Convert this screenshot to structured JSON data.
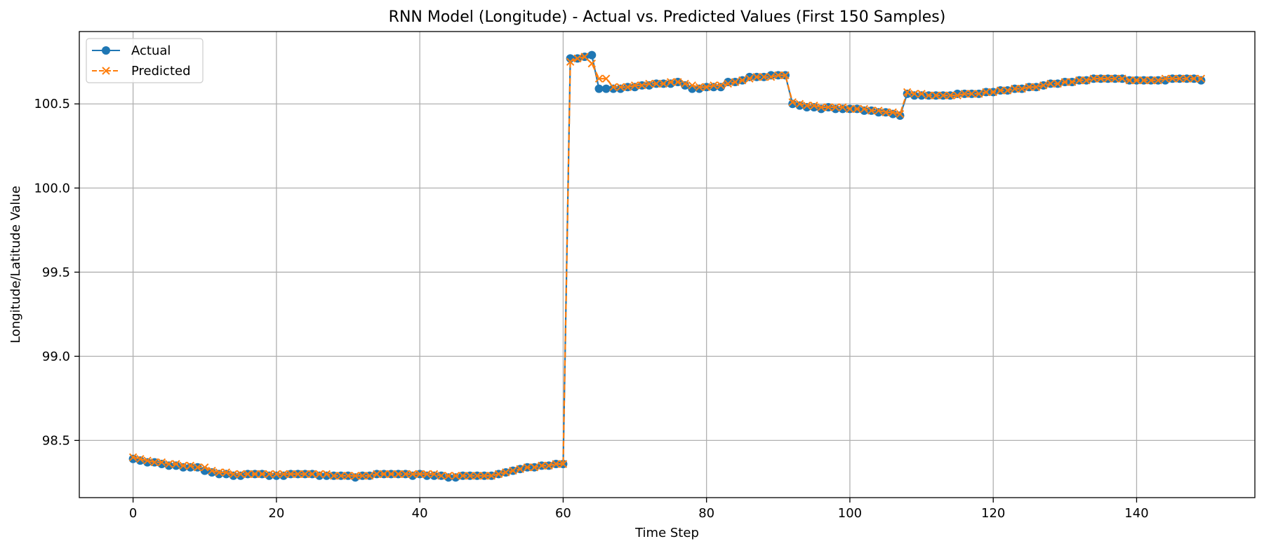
{
  "colors": {
    "actual": "#1f77b4",
    "predicted": "#ff7f0e",
    "grid": "#b0b0b0"
  },
  "chart_data": {
    "type": "line",
    "title": "RNN Model (Longitude) - Actual vs. Predicted Values (First 150 Samples)",
    "xlabel": "Time Step",
    "ylabel": "Longitude/Latitude Value",
    "xlim": [
      -7.5,
      156.5
    ],
    "ylim": [
      98.16,
      100.93
    ],
    "xticks": [
      0,
      20,
      40,
      60,
      80,
      100,
      120,
      140
    ],
    "xtick_labels": [
      "0",
      "20",
      "40",
      "60",
      "80",
      "100",
      "120",
      "140"
    ],
    "yticks": [
      98.5,
      99.0,
      99.5,
      100.0,
      100.5
    ],
    "ytick_labels": [
      "98.5",
      "99.0",
      "99.5",
      "100.0",
      "100.5"
    ],
    "grid": true,
    "legend_position": "upper-left",
    "x": [
      0,
      1,
      2,
      3,
      4,
      5,
      6,
      7,
      8,
      9,
      10,
      11,
      12,
      13,
      14,
      15,
      16,
      17,
      18,
      19,
      20,
      21,
      22,
      23,
      24,
      25,
      26,
      27,
      28,
      29,
      30,
      31,
      32,
      33,
      34,
      35,
      36,
      37,
      38,
      39,
      40,
      41,
      42,
      43,
      44,
      45,
      46,
      47,
      48,
      49,
      50,
      51,
      52,
      53,
      54,
      55,
      56,
      57,
      58,
      59,
      60,
      61,
      62,
      63,
      64,
      65,
      66,
      67,
      68,
      69,
      70,
      71,
      72,
      73,
      74,
      75,
      76,
      77,
      78,
      79,
      80,
      81,
      82,
      83,
      84,
      85,
      86,
      87,
      88,
      89,
      90,
      91,
      92,
      93,
      94,
      95,
      96,
      97,
      98,
      99,
      100,
      101,
      102,
      103,
      104,
      105,
      106,
      107,
      108,
      109,
      110,
      111,
      112,
      113,
      114,
      115,
      116,
      117,
      118,
      119,
      120,
      121,
      122,
      123,
      124,
      125,
      126,
      127,
      128,
      129,
      130,
      131,
      132,
      133,
      134,
      135,
      136,
      137,
      138,
      139,
      140,
      141,
      142,
      143,
      144,
      145,
      146,
      147,
      148,
      149
    ],
    "series": [
      {
        "name": "Actual",
        "marker": "circle",
        "linestyle": "solid",
        "values": [
          98.39,
          98.38,
          98.37,
          98.37,
          98.36,
          98.35,
          98.35,
          98.34,
          98.34,
          98.34,
          98.32,
          98.31,
          98.3,
          98.3,
          98.29,
          98.29,
          98.3,
          98.3,
          98.3,
          98.29,
          98.29,
          98.29,
          98.3,
          98.3,
          98.3,
          98.3,
          98.29,
          98.29,
          98.29,
          98.29,
          98.29,
          98.28,
          98.29,
          98.29,
          98.3,
          98.3,
          98.3,
          98.3,
          98.3,
          98.29,
          98.3,
          98.29,
          98.29,
          98.29,
          98.28,
          98.28,
          98.29,
          98.29,
          98.29,
          98.29,
          98.29,
          98.3,
          98.31,
          98.32,
          98.33,
          98.34,
          98.34,
          98.35,
          98.35,
          98.36,
          98.36,
          100.77,
          100.77,
          100.78,
          100.79,
          100.59,
          100.59,
          100.59,
          100.59,
          100.6,
          100.6,
          100.61,
          100.61,
          100.62,
          100.62,
          100.62,
          100.63,
          100.61,
          100.59,
          100.59,
          100.6,
          100.6,
          100.6,
          100.63,
          100.63,
          100.64,
          100.66,
          100.66,
          100.66,
          100.67,
          100.67,
          100.67,
          100.5,
          100.49,
          100.48,
          100.48,
          100.47,
          100.48,
          100.47,
          100.47,
          100.47,
          100.47,
          100.46,
          100.46,
          100.45,
          100.45,
          100.44,
          100.43,
          100.56,
          100.55,
          100.55,
          100.55,
          100.55,
          100.55,
          100.55,
          100.56,
          100.56,
          100.56,
          100.56,
          100.57,
          100.57,
          100.58,
          100.58,
          100.59,
          100.59,
          100.6,
          100.6,
          100.61,
          100.62,
          100.62,
          100.63,
          100.63,
          100.64,
          100.64,
          100.65,
          100.65,
          100.65,
          100.65,
          100.65,
          100.64,
          100.64,
          100.64,
          100.64,
          100.64,
          100.64,
          100.65,
          100.65,
          100.65,
          100.65,
          100.64
        ]
      },
      {
        "name": "Predicted",
        "marker": "x",
        "linestyle": "dashed",
        "values": [
          98.4,
          98.39,
          98.38,
          98.37,
          98.37,
          98.36,
          98.36,
          98.35,
          98.35,
          98.34,
          98.34,
          98.32,
          98.31,
          98.31,
          98.3,
          98.3,
          98.3,
          98.3,
          98.3,
          98.3,
          98.3,
          98.3,
          98.3,
          98.3,
          98.3,
          98.3,
          98.3,
          98.3,
          98.29,
          98.29,
          98.29,
          98.29,
          98.29,
          98.29,
          98.3,
          98.3,
          98.3,
          98.3,
          98.3,
          98.3,
          98.3,
          98.3,
          98.3,
          98.29,
          98.29,
          98.29,
          98.29,
          98.29,
          98.29,
          98.29,
          98.29,
          98.3,
          98.31,
          98.32,
          98.33,
          98.34,
          98.34,
          98.35,
          98.35,
          98.36,
          98.36,
          100.75,
          100.77,
          100.78,
          100.74,
          100.65,
          100.65,
          100.6,
          100.6,
          100.6,
          100.61,
          100.61,
          100.62,
          100.62,
          100.62,
          100.63,
          100.63,
          100.62,
          100.61,
          100.6,
          100.6,
          100.61,
          100.61,
          100.62,
          100.63,
          100.64,
          100.65,
          100.66,
          100.66,
          100.66,
          100.67,
          100.67,
          100.51,
          100.5,
          100.49,
          100.49,
          100.48,
          100.48,
          100.48,
          100.48,
          100.47,
          100.47,
          100.47,
          100.46,
          100.46,
          100.45,
          100.45,
          100.44,
          100.57,
          100.56,
          100.56,
          100.55,
          100.55,
          100.55,
          100.55,
          100.55,
          100.56,
          100.56,
          100.56,
          100.57,
          100.57,
          100.58,
          100.58,
          100.59,
          100.59,
          100.6,
          100.6,
          100.61,
          100.62,
          100.62,
          100.63,
          100.63,
          100.64,
          100.64,
          100.65,
          100.65,
          100.65,
          100.65,
          100.65,
          100.64,
          100.64,
          100.64,
          100.64,
          100.64,
          100.65,
          100.65,
          100.65,
          100.65,
          100.65,
          100.65
        ]
      }
    ]
  }
}
